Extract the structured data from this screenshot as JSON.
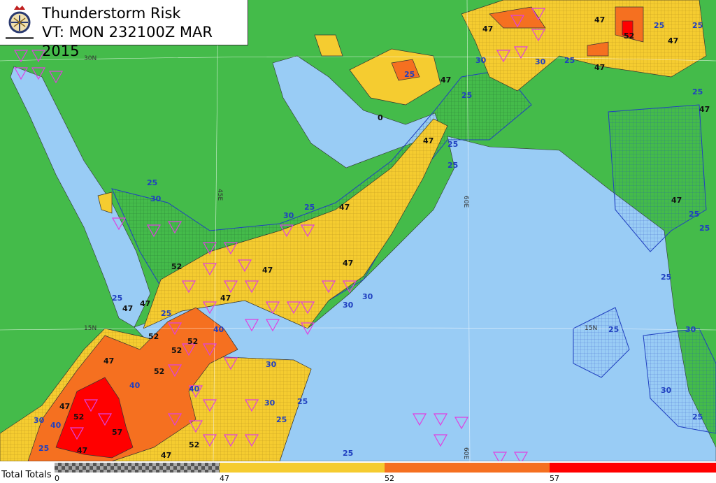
{
  "title": {
    "line1": "Thunderstorm Risk",
    "line2": "VT: MON 232100Z MAR 2015",
    "logo_text": "MINISTRY OF DEFENCE"
  },
  "grid_labels": {
    "lat30": "30N",
    "lat15": "15N",
    "lon45": "45E",
    "lon60": "60E",
    "lat15b": "15N",
    "lon60b": "60E"
  },
  "colors": {
    "sea": "#99ccf5",
    "land": "#44bb4a",
    "tt47": "#f5cc30",
    "tt52": "#f57020",
    "tt57": "#ff0000",
    "contour": "#2040c0",
    "storm_marker": "#e040e0"
  },
  "contour_labels": [
    "25",
    "30",
    "47",
    "52",
    "25",
    "25",
    "47",
    "47",
    "47",
    "0",
    "25",
    "30",
    "52",
    "47",
    "25",
    "25",
    "47",
    "25",
    "25",
    "30",
    "47",
    "25",
    "25",
    "47",
    "47",
    "52",
    "47",
    "30",
    "25",
    "30",
    "30",
    "47",
    "52",
    "40",
    "52",
    "52",
    "40",
    "40",
    "47",
    "30",
    "25",
    "25",
    "30",
    "40",
    "52",
    "57",
    "47",
    "47",
    "52",
    "47",
    "30",
    "25",
    "25",
    "25",
    "25",
    "25",
    "30",
    "25",
    "47",
    "47",
    "25",
    "47",
    "30",
    "25"
  ],
  "legend": {
    "name": "Total Totals",
    "ticks": [
      "0",
      "47",
      "52",
      "57"
    ],
    "segments": [
      "checker",
      "#f5cc30",
      "#f57020",
      "#ff0000"
    ]
  }
}
